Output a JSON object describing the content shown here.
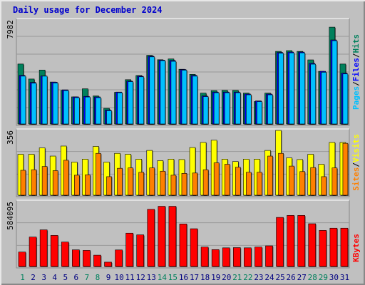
{
  "chart_data": [
    {
      "type": "bar",
      "title": "Daily usage for December 2024",
      "panel": "pages-files-hits",
      "categories": [
        "1",
        "2",
        "3",
        "4",
        "5",
        "6",
        "7",
        "8",
        "9",
        "10",
        "11",
        "12",
        "13",
        "14",
        "15",
        "16",
        "17",
        "18",
        "19",
        "20",
        "21",
        "22",
        "23",
        "24",
        "25",
        "26",
        "27",
        "28",
        "29",
        "30",
        "31"
      ],
      "weekend_categories": [
        "1",
        "7",
        "8",
        "14",
        "15",
        "21",
        "22",
        "28",
        "29"
      ],
      "ymax_label": "7982",
      "ylim": [
        0,
        7982
      ],
      "series": [
        {
          "name": "Hits",
          "color": "#00805c",
          "values": [
            4600,
            3450,
            4140,
            3220,
            2580,
            2080,
            2700,
            2150,
            1200,
            2430,
            3400,
            3720,
            5270,
            4930,
            4990,
            4200,
            3810,
            2370,
            2560,
            2580,
            2580,
            2370,
            1720,
            2370,
            5570,
            5630,
            5570,
            4920,
            4040,
            7430,
            4600
          ]
        },
        {
          "name": "Files",
          "color": "#0000ff",
          "values": [
            3730,
            3190,
            3690,
            3210,
            2620,
            2080,
            2120,
            2080,
            1070,
            2450,
            3290,
            3670,
            5200,
            4900,
            4870,
            4180,
            3730,
            2150,
            2450,
            2450,
            2450,
            2300,
            1770,
            2300,
            5490,
            5520,
            5520,
            4650,
            4040,
            6450,
            3900
          ]
        },
        {
          "name": "Pages",
          "color": "#00c0ff",
          "values": [
            3670,
            3130,
            3670,
            3150,
            2560,
            2020,
            2070,
            2020,
            1020,
            2400,
            3250,
            3620,
            5150,
            4860,
            4810,
            4130,
            3670,
            2100,
            2400,
            2400,
            2400,
            2240,
            1720,
            2240,
            5430,
            5460,
            5460,
            4590,
            3970,
            6390,
            3840
          ]
        }
      ]
    },
    {
      "type": "bar",
      "panel": "visits-sites",
      "ymax_label": "356",
      "ylim": [
        0,
        356
      ],
      "series": [
        {
          "name": "Visits",
          "color": "#ffff00",
          "values": [
            225,
            225,
            260,
            215,
            270,
            182,
            198,
            268,
            182,
            230,
            225,
            198,
            246,
            190,
            198,
            196,
            262,
            290,
            302,
            198,
            185,
            198,
            198,
            246,
            356,
            205,
            196,
            225,
            170,
            290,
            290
          ]
        },
        {
          "name": "Sites",
          "color": "#ff8000",
          "values": [
            137,
            140,
            158,
            135,
            192,
            110,
            112,
            230,
            102,
            148,
            150,
            126,
            150,
            132,
            110,
            120,
            122,
            140,
            178,
            170,
            154,
            126,
            126,
            215,
            230,
            160,
            130,
            152,
            102,
            150,
            285
          ]
        }
      ]
    },
    {
      "type": "bar",
      "panel": "kbytes",
      "ymax_label": "584095",
      "ylim": [
        0,
        584095
      ],
      "series": [
        {
          "name": "KBytes",
          "color": "#ff0000",
          "values": [
            130000,
            265000,
            330000,
            280000,
            220000,
            150000,
            145000,
            102000,
            39000,
            149000,
            300000,
            285000,
            515000,
            542000,
            542000,
            383000,
            340000,
            175000,
            152000,
            168000,
            170000,
            168000,
            175000,
            186000,
            442000,
            460000,
            460000,
            385000,
            325000,
            345000,
            345000
          ]
        }
      ]
    }
  ]
}
